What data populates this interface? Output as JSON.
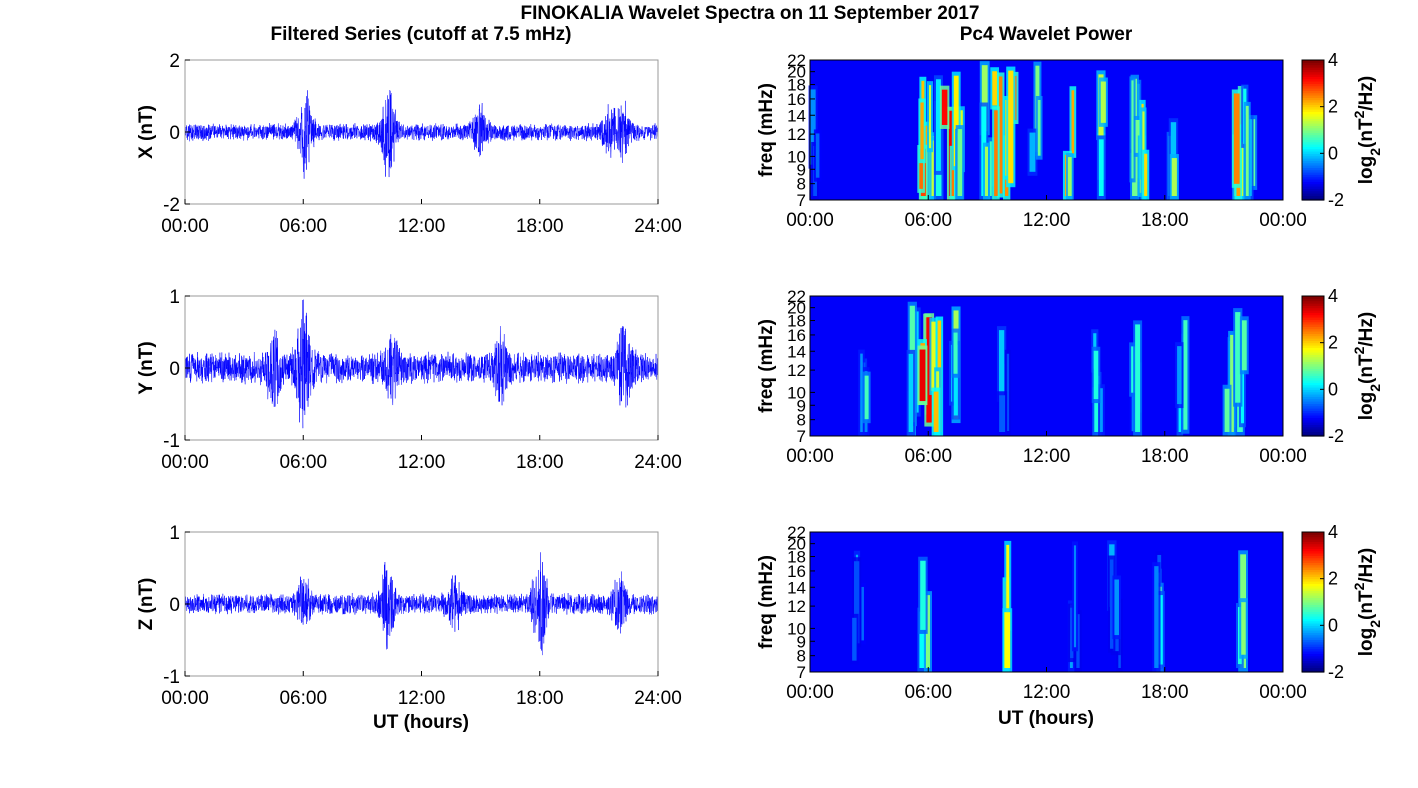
{
  "figure": {
    "title": "FINOKALIA Wavelet Spectra on 11 September 2017",
    "left_column_title": "Filtered Series (cutoff at 7.5 mHz)",
    "right_column_title": "Pc4 Wavelet Power",
    "xlabel": "UT (hours)",
    "colormap": "jet",
    "trace_color": "#0000ff"
  },
  "chart_data": [
    {
      "type": "line",
      "ylabel": "X (nT)",
      "ylim": [
        -2,
        2
      ],
      "yticks": [
        "-2",
        "0",
        "2"
      ],
      "xticks": [
        "00:00",
        "06:00",
        "12:00",
        "18:00",
        "24:00"
      ],
      "xlim_hours": [
        0,
        24
      ],
      "noise_amp": 0.2,
      "bursts": [
        {
          "t_hours": 6.1,
          "amp": 1.4
        },
        {
          "t_hours": 10.3,
          "amp": 1.5
        },
        {
          "t_hours": 15.0,
          "amp": 0.7
        },
        {
          "t_hours": 21.5,
          "amp": 0.6
        },
        {
          "t_hours": 22.2,
          "amp": 0.8
        }
      ]
    },
    {
      "type": "line",
      "ylabel": "Y (nT)",
      "ylim": [
        -1,
        1
      ],
      "yticks": [
        "-1",
        "0",
        "1"
      ],
      "xticks": [
        "00:00",
        "06:00",
        "12:00",
        "18:00",
        "24:00"
      ],
      "xlim_hours": [
        0,
        24
      ],
      "noise_amp": 0.18,
      "bursts": [
        {
          "t_hours": 4.5,
          "amp": 0.5
        },
        {
          "t_hours": 6.0,
          "amp": 1.0
        },
        {
          "t_hours": 10.5,
          "amp": 0.4
        },
        {
          "t_hours": 16.0,
          "amp": 0.45
        },
        {
          "t_hours": 22.3,
          "amp": 0.6
        }
      ]
    },
    {
      "type": "line",
      "ylabel": "Z (nT)",
      "ylim": [
        -1,
        1
      ],
      "yticks": [
        "-1",
        "0",
        "1"
      ],
      "xticks": [
        "00:00",
        "06:00",
        "12:00",
        "18:00",
        "24:00"
      ],
      "xlim_hours": [
        0,
        24
      ],
      "noise_amp": 0.12,
      "bursts": [
        {
          "t_hours": 6.0,
          "amp": 0.35
        },
        {
          "t_hours": 10.3,
          "amp": 0.6
        },
        {
          "t_hours": 13.7,
          "amp": 0.4
        },
        {
          "t_hours": 18.0,
          "amp": 0.75
        },
        {
          "t_hours": 22.0,
          "amp": 0.45
        }
      ]
    },
    {
      "type": "heatmap",
      "ylabel": "freq (mHz)",
      "freq_ticks": [
        "7",
        "8",
        "9",
        "10",
        "12",
        "14",
        "16",
        "18",
        "20",
        "22"
      ],
      "xticks": [
        "00:00",
        "06:00",
        "12:00",
        "18:00",
        "00:00"
      ],
      "colorbar": {
        "label": "log2(nT^2/Hz)",
        "range": [
          -2,
          4
        ],
        "ticks": [
          "-2",
          "0",
          "2",
          "4"
        ]
      },
      "streaks": [
        {
          "t_hours": 0.3,
          "level": 0.35
        },
        {
          "t_hours": 5.7,
          "level": 0.85
        },
        {
          "t_hours": 6.3,
          "level": 0.6
        },
        {
          "t_hours": 7.0,
          "level": 0.9
        },
        {
          "t_hours": 7.5,
          "level": 0.7
        },
        {
          "t_hours": 9.0,
          "level": 0.6
        },
        {
          "t_hours": 9.6,
          "level": 0.8
        },
        {
          "t_hours": 10.2,
          "level": 0.85
        },
        {
          "t_hours": 11.5,
          "level": 0.55
        },
        {
          "t_hours": 13.3,
          "level": 0.75
        },
        {
          "t_hours": 14.7,
          "level": 0.6
        },
        {
          "t_hours": 16.5,
          "level": 0.55
        },
        {
          "t_hours": 17.0,
          "level": 0.7
        },
        {
          "t_hours": 18.4,
          "level": 0.55
        },
        {
          "t_hours": 21.8,
          "level": 0.8
        },
        {
          "t_hours": 22.3,
          "level": 0.55
        }
      ]
    },
    {
      "type": "heatmap",
      "ylabel": "freq (mHz)",
      "freq_ticks": [
        "7",
        "8",
        "9",
        "10",
        "12",
        "14",
        "16",
        "18",
        "20",
        "22"
      ],
      "xticks": [
        "00:00",
        "06:00",
        "12:00",
        "18:00",
        "00:00"
      ],
      "colorbar": {
        "label": "log2(nT^2/Hz)",
        "range": [
          -2,
          4
        ],
        "ticks": [
          "-2",
          "0",
          "2",
          "4"
        ]
      },
      "streaks": [
        {
          "t_hours": 2.7,
          "level": 0.45
        },
        {
          "t_hours": 5.2,
          "level": 0.55
        },
        {
          "t_hours": 5.9,
          "level": 0.9
        },
        {
          "t_hours": 6.4,
          "level": 0.7
        },
        {
          "t_hours": 7.2,
          "level": 0.55
        },
        {
          "t_hours": 9.8,
          "level": 0.4
        },
        {
          "t_hours": 14.6,
          "level": 0.5
        },
        {
          "t_hours": 16.5,
          "level": 0.45
        },
        {
          "t_hours": 18.8,
          "level": 0.45
        },
        {
          "t_hours": 21.3,
          "level": 0.6
        },
        {
          "t_hours": 21.9,
          "level": 0.55
        }
      ]
    },
    {
      "type": "heatmap",
      "ylabel": "freq (mHz)",
      "freq_ticks": [
        "7",
        "8",
        "9",
        "10",
        "12",
        "14",
        "16",
        "18",
        "20",
        "22"
      ],
      "xticks": [
        "00:00",
        "06:00",
        "12:00",
        "18:00",
        "00:00"
      ],
      "colorbar": {
        "label": "log2(nT^2/Hz)",
        "range": [
          -2,
          4
        ],
        "ticks": [
          "-2",
          "0",
          "2",
          "4"
        ]
      },
      "streaks": [
        {
          "t_hours": 2.5,
          "level": 0.35
        },
        {
          "t_hours": 5.8,
          "level": 0.55
        },
        {
          "t_hours": 10.0,
          "level": 0.7
        },
        {
          "t_hours": 13.5,
          "level": 0.4
        },
        {
          "t_hours": 15.5,
          "level": 0.35
        },
        {
          "t_hours": 17.8,
          "level": 0.45
        },
        {
          "t_hours": 21.8,
          "level": 0.55
        }
      ]
    }
  ]
}
